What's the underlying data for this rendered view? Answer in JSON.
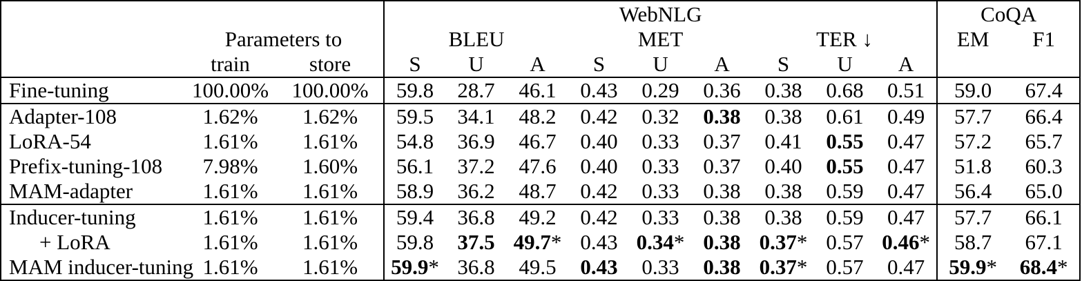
{
  "table": {
    "header": {
      "group_webnlg": "WebNLG",
      "group_coqa": "CoQA",
      "params_label": "Parameters to",
      "col_train": "train",
      "col_store": "store",
      "metric_bleu": "BLEU",
      "metric_met": "MET",
      "metric_ter": "TER ↓",
      "col_em": "EM",
      "col_f1": "F1",
      "sub_s": "S",
      "sub_u": "U",
      "sub_a": "A"
    },
    "rows": [
      {
        "method": "Fine-tuning",
        "indent": false,
        "sep_before": false,
        "train": "100.00%",
        "store": "100.00%",
        "values": [
          {
            "v": "59.8"
          },
          {
            "v": "28.7"
          },
          {
            "v": "46.1"
          },
          {
            "v": "0.43"
          },
          {
            "v": "0.29"
          },
          {
            "v": "0.36"
          },
          {
            "v": "0.38"
          },
          {
            "v": "0.68"
          },
          {
            "v": "0.51"
          },
          {
            "v": "59.0"
          },
          {
            "v": "67.4"
          }
        ]
      },
      {
        "method": "Adapter-108",
        "indent": false,
        "sep_before": true,
        "train": "1.62%",
        "store": "1.62%",
        "values": [
          {
            "v": "59.5"
          },
          {
            "v": "34.1"
          },
          {
            "v": "48.2"
          },
          {
            "v": "0.42"
          },
          {
            "v": "0.32"
          },
          {
            "v": "0.38",
            "b": true
          },
          {
            "v": "0.38"
          },
          {
            "v": "0.61"
          },
          {
            "v": "0.49"
          },
          {
            "v": "57.7"
          },
          {
            "v": "66.4"
          }
        ]
      },
      {
        "method": "LoRA-54",
        "indent": false,
        "sep_before": false,
        "train": "1.61%",
        "store": "1.61%",
        "values": [
          {
            "v": "54.8"
          },
          {
            "v": "36.9"
          },
          {
            "v": "46.7"
          },
          {
            "v": "0.40"
          },
          {
            "v": "0.33"
          },
          {
            "v": "0.37"
          },
          {
            "v": "0.41"
          },
          {
            "v": "0.55",
            "b": true
          },
          {
            "v": "0.47"
          },
          {
            "v": "57.2"
          },
          {
            "v": "65.7"
          }
        ]
      },
      {
        "method": "Prefix-tuning-108",
        "indent": false,
        "sep_before": false,
        "train": "7.98%",
        "store": "1.60%",
        "values": [
          {
            "v": "56.1"
          },
          {
            "v": "37.2"
          },
          {
            "v": "47.6"
          },
          {
            "v": "0.40"
          },
          {
            "v": "0.33"
          },
          {
            "v": "0.37"
          },
          {
            "v": "0.40"
          },
          {
            "v": "0.55",
            "b": true
          },
          {
            "v": "0.47"
          },
          {
            "v": "51.8"
          },
          {
            "v": "60.3"
          }
        ]
      },
      {
        "method": "MAM-adapter",
        "indent": false,
        "sep_before": false,
        "train": "1.61%",
        "store": "1.61%",
        "values": [
          {
            "v": "58.9"
          },
          {
            "v": "36.2"
          },
          {
            "v": "48.7"
          },
          {
            "v": "0.42"
          },
          {
            "v": "0.33"
          },
          {
            "v": "0.38"
          },
          {
            "v": "0.38"
          },
          {
            "v": "0.59"
          },
          {
            "v": "0.47"
          },
          {
            "v": "56.4"
          },
          {
            "v": "65.0"
          }
        ]
      },
      {
        "method": "Inducer-tuning",
        "indent": false,
        "sep_before": true,
        "train": "1.61%",
        "store": "1.61%",
        "values": [
          {
            "v": "59.4"
          },
          {
            "v": "36.8"
          },
          {
            "v": "49.2"
          },
          {
            "v": "0.42"
          },
          {
            "v": "0.33"
          },
          {
            "v": "0.38"
          },
          {
            "v": "0.38"
          },
          {
            "v": "0.59"
          },
          {
            "v": "0.47"
          },
          {
            "v": "57.7"
          },
          {
            "v": "66.1"
          }
        ]
      },
      {
        "method": "+ LoRA",
        "indent": true,
        "sep_before": false,
        "train": "1.61%",
        "store": "1.61%",
        "values": [
          {
            "v": "59.8"
          },
          {
            "v": "37.5",
            "b": true
          },
          {
            "v": "49.7",
            "b": true,
            "star": true
          },
          {
            "v": "0.43"
          },
          {
            "v": "0.34",
            "b": true,
            "star": true
          },
          {
            "v": "0.38",
            "b": true
          },
          {
            "v": "0.37",
            "b": true,
            "star": true
          },
          {
            "v": "0.57"
          },
          {
            "v": "0.46",
            "b": true,
            "star": true
          },
          {
            "v": "58.7"
          },
          {
            "v": "67.1"
          }
        ]
      },
      {
        "method": "MAM inducer-tuning",
        "indent": false,
        "sep_before": false,
        "train": "1.61%",
        "store": "1.61%",
        "values": [
          {
            "v": "59.9",
            "b": true,
            "star": true
          },
          {
            "v": "36.8"
          },
          {
            "v": "49.5"
          },
          {
            "v": "0.43",
            "b": true
          },
          {
            "v": "0.33"
          },
          {
            "v": "0.38",
            "b": true
          },
          {
            "v": "0.37",
            "b": true,
            "star": true
          },
          {
            "v": "0.57"
          },
          {
            "v": "0.47"
          },
          {
            "v": "59.9",
            "b": true,
            "star": true
          },
          {
            "v": "68.4",
            "b": true,
            "star": true
          }
        ]
      }
    ]
  }
}
